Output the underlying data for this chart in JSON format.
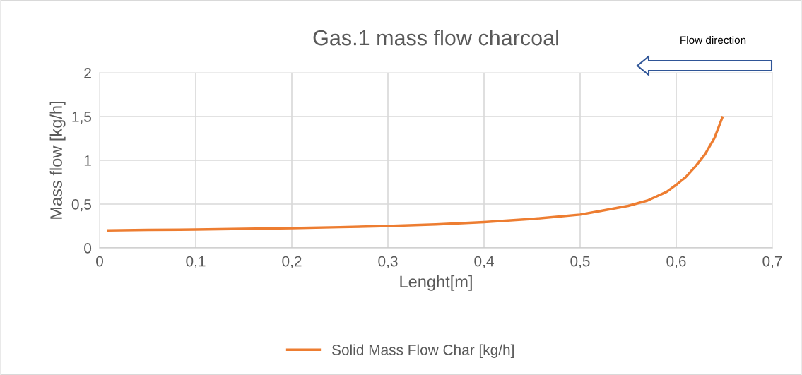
{
  "chart_data": {
    "type": "line",
    "title": "Gas.1 mass flow charcoal",
    "xlabel": "Lenght[m]",
    "ylabel": "Mass flow [kg/h]",
    "annotations": [
      "Flow direction"
    ],
    "series": [
      {
        "name": "Solid Mass Flow Char [kg/h]",
        "color": "#ed7d31",
        "x": [
          0.009,
          0.05,
          0.1,
          0.15,
          0.2,
          0.25,
          0.3,
          0.35,
          0.4,
          0.45,
          0.5,
          0.52,
          0.55,
          0.57,
          0.59,
          0.6,
          0.61,
          0.62,
          0.63,
          0.64,
          0.648
        ],
        "values": [
          0.2,
          0.205,
          0.21,
          0.217,
          0.225,
          0.237,
          0.25,
          0.268,
          0.295,
          0.33,
          0.38,
          0.42,
          0.48,
          0.54,
          0.64,
          0.72,
          0.81,
          0.93,
          1.07,
          1.26,
          1.49
        ]
      }
    ],
    "xlim": [
      0,
      0.7
    ],
    "xticks": [
      {
        "value": 0,
        "label": "0"
      },
      {
        "value": 0.1,
        "label": "0,1"
      },
      {
        "value": 0.2,
        "label": "0,2"
      },
      {
        "value": 0.3,
        "label": "0,3"
      },
      {
        "value": 0.4,
        "label": "0,4"
      },
      {
        "value": 0.5,
        "label": "0,5"
      },
      {
        "value": 0.6,
        "label": "0,6"
      },
      {
        "value": 0.7,
        "label": "0,7"
      }
    ],
    "ylim": [
      0,
      2
    ],
    "yticks": [
      {
        "value": 0,
        "label": "0"
      },
      {
        "value": 0.5,
        "label": "0,5"
      },
      {
        "value": 1,
        "label": "1"
      },
      {
        "value": 1.5,
        "label": "1,5"
      },
      {
        "value": 2,
        "label": "2"
      }
    ],
    "grid": true,
    "legend": "bottom",
    "marker": "none",
    "line_style": "solid"
  }
}
